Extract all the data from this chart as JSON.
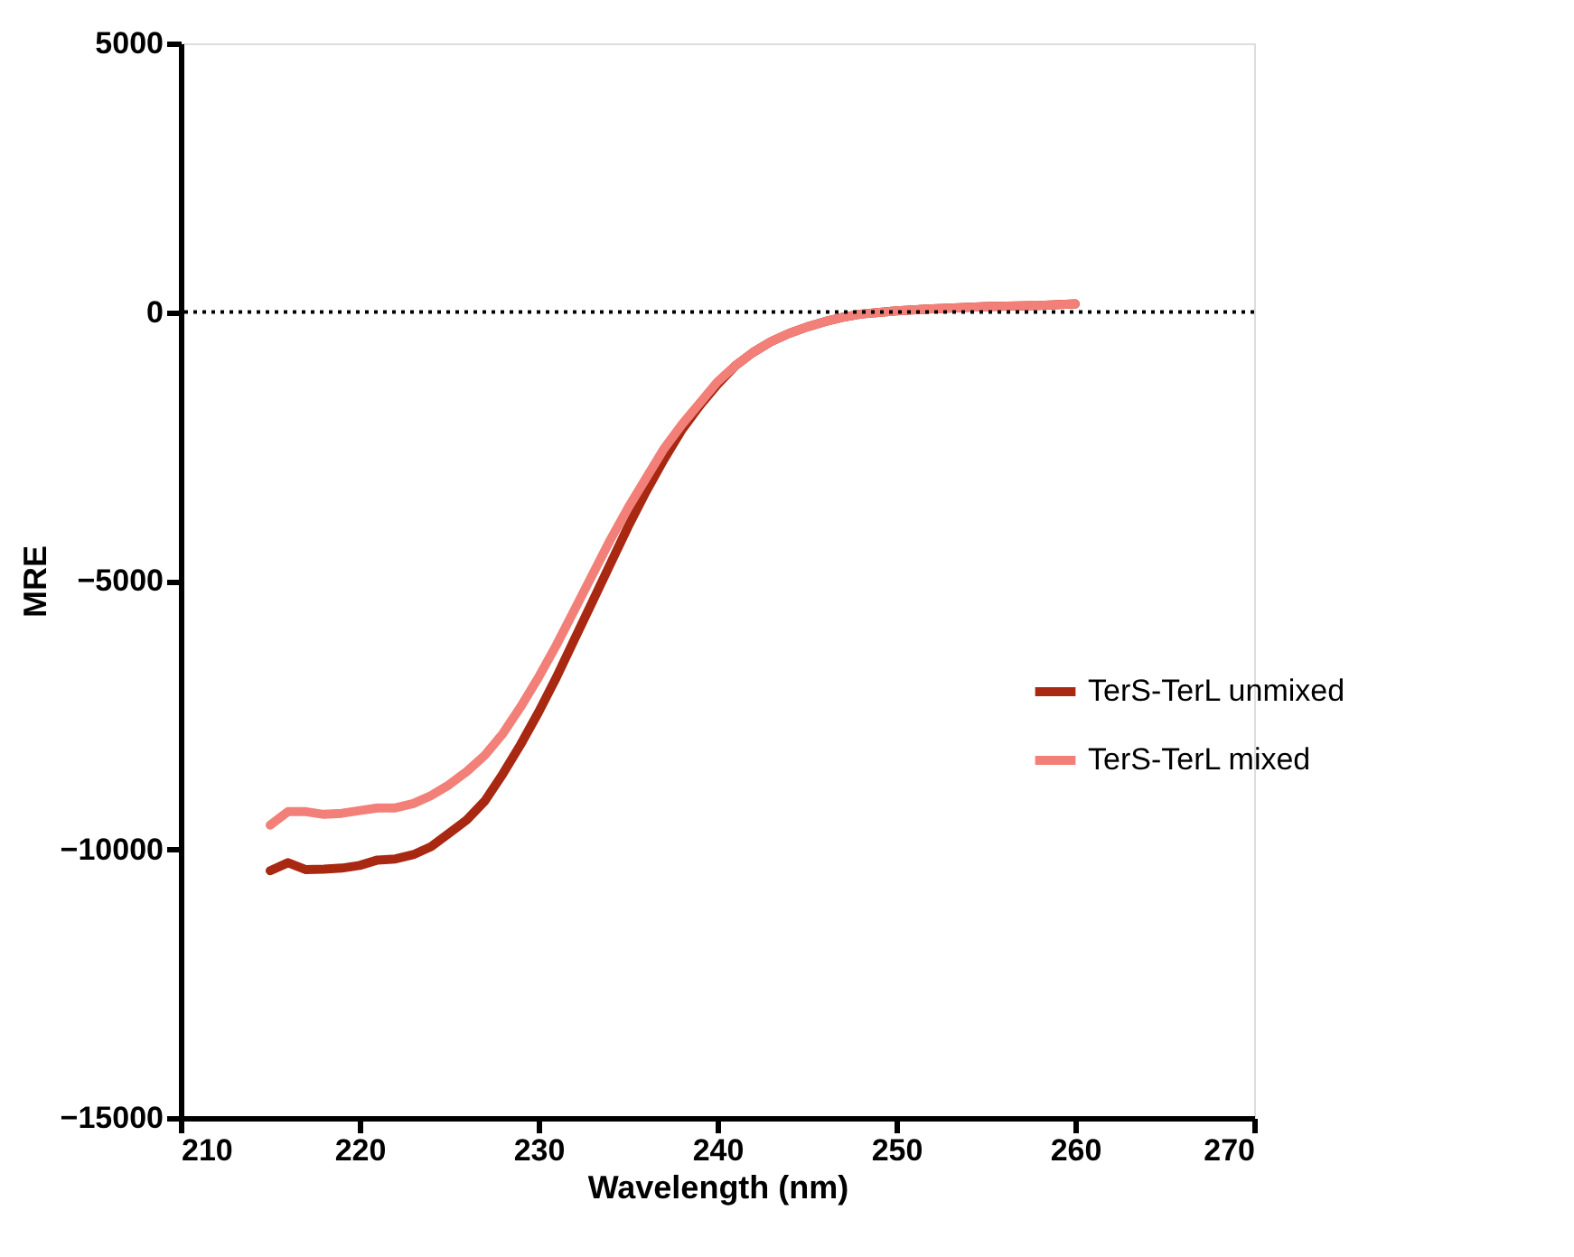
{
  "chart_data": {
    "type": "line",
    "xlabel": "Wavelength (nm)",
    "ylabel": "MRE",
    "xlim": [
      210,
      270
    ],
    "xticks": [
      210,
      220,
      230,
      240,
      250,
      260,
      270
    ],
    "ylim": [
      -15000,
      5000
    ],
    "yticks": [
      -15000,
      -10000,
      -5000,
      0,
      5000
    ],
    "x": [
      215,
      216,
      217,
      218,
      219,
      220,
      221,
      222,
      223,
      224,
      225,
      226,
      227,
      228,
      229,
      230,
      231,
      232,
      233,
      234,
      235,
      236,
      237,
      238,
      239,
      240,
      241,
      242,
      243,
      244,
      245,
      246,
      247,
      248,
      250,
      252,
      255,
      258,
      260
    ],
    "series": [
      {
        "name": "TerS-TerL unmixed",
        "color": "#a82812",
        "values": [
          -10400,
          -10250,
          -10380,
          -10370,
          -10350,
          -10300,
          -10200,
          -10180,
          -10100,
          -9950,
          -9700,
          -9450,
          -9100,
          -8600,
          -8050,
          -7450,
          -6800,
          -6100,
          -5400,
          -4700,
          -4000,
          -3350,
          -2750,
          -2200,
          -1750,
          -1350,
          -1000,
          -750,
          -550,
          -400,
          -280,
          -180,
          -100,
          -40,
          20,
          60,
          100,
          120,
          150
        ]
      },
      {
        "name": "TerS-TerL mixed",
        "color": "#f28079",
        "values": [
          -9550,
          -9300,
          -9300,
          -9350,
          -9330,
          -9280,
          -9230,
          -9230,
          -9150,
          -9000,
          -8800,
          -8550,
          -8250,
          -7850,
          -7350,
          -6800,
          -6200,
          -5550,
          -4900,
          -4250,
          -3650,
          -3100,
          -2550,
          -2100,
          -1700,
          -1300,
          -1000,
          -750,
          -550,
          -400,
          -280,
          -180,
          -100,
          -40,
          20,
          60,
          100,
          120,
          150
        ]
      }
    ],
    "ref_lines": [
      {
        "axis": "y",
        "value": 0,
        "color": "#000000",
        "line_style": "dotted"
      }
    ],
    "legend": "right",
    "grid": false,
    "marker": "none",
    "line_style": "solid"
  }
}
